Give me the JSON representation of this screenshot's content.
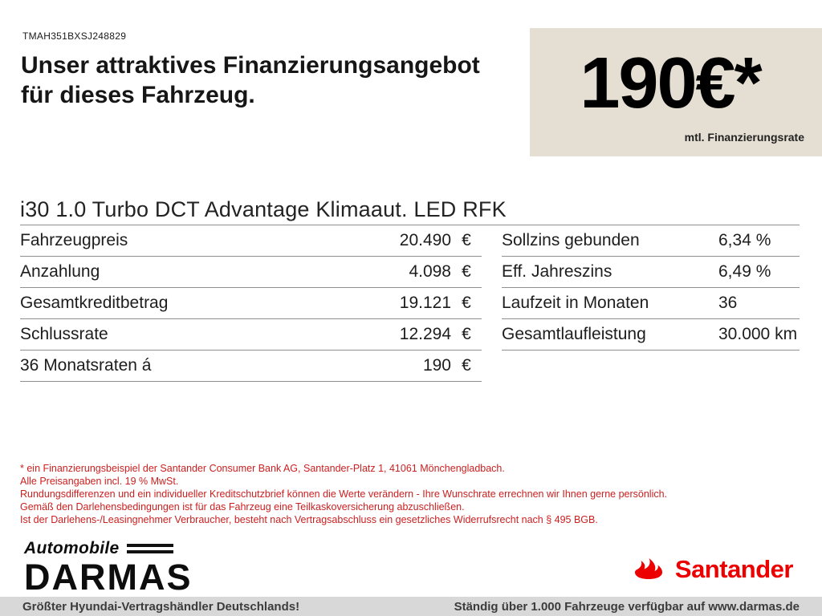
{
  "header": {
    "vin": "TMAH351BXSJ248829",
    "headline_line1": "Unser attraktives Finanzierungsangebot",
    "headline_line2": "für dieses Fahrzeug.",
    "rate_box": {
      "rate": "190€*",
      "caption": "mtl. Finanzierungsrate"
    }
  },
  "vehicle": {
    "title": "i30 1.0 Turbo DCT Advantage Klimaaut. LED RFK"
  },
  "finance_table": {
    "left": [
      {
        "label": "Fahrzeugpreis",
        "value": "20.490",
        "unit": "€"
      },
      {
        "label": "Anzahlung",
        "value": "4.098",
        "unit": "€"
      },
      {
        "label": "Gesamtkreditbetrag",
        "value": "19.121",
        "unit": "€"
      },
      {
        "label": "Schlussrate",
        "value": "12.294",
        "unit": "€"
      },
      {
        "label": "36 Monatsraten á",
        "value": "190",
        "unit": "€"
      }
    ],
    "right": [
      {
        "label": "Sollzins gebunden",
        "value": "6,34 %"
      },
      {
        "label": "Eff. Jahreszins",
        "value": "6,49 %"
      },
      {
        "label": "Laufzeit in Monaten",
        "value": "36"
      },
      {
        "label": "Gesamtlaufleistung",
        "value": "30.000 km"
      }
    ]
  },
  "disclaimer": {
    "lines": [
      "* ein Finanzierungsbeispiel der Santander Consumer Bank AG, Santander-Platz 1, 41061 Mönchengladbach.",
      "Alle Preisangaben incl. 19 % MwSt.",
      "Rundungsdifferenzen und ein individueller Kreditschutzbrief können die Werte verändern - Ihre Wunschrate errechnen wir Ihnen gerne persönlich.",
      "Gemäß den Darlehensbedingungen ist für das Fahrzeug eine Teilkaskoversicherung abzuschließen.",
      "Ist der Darlehens-/Leasingnehmer Verbraucher, besteht nach Vertragsabschluss ein gesetzliches Widerrufsrecht nach § 495 BGB."
    ]
  },
  "footer": {
    "dealer_logo": {
      "top": "Automobile",
      "main": "DARMAS"
    },
    "santander_logo": "Santander",
    "bottom_bar": {
      "left": "Größter Hyundai-Vertragshändler Deutschlands!",
      "right": "Ständig über 1.000 Fahrzeuge verfügbar auf www.darmas.de"
    }
  },
  "colors": {
    "beige_box": "#e5dfd3",
    "disclaimer_red": "#cc2020",
    "santander_red": "#ec0000",
    "footer_bar_gray": "#d8d8d8"
  }
}
